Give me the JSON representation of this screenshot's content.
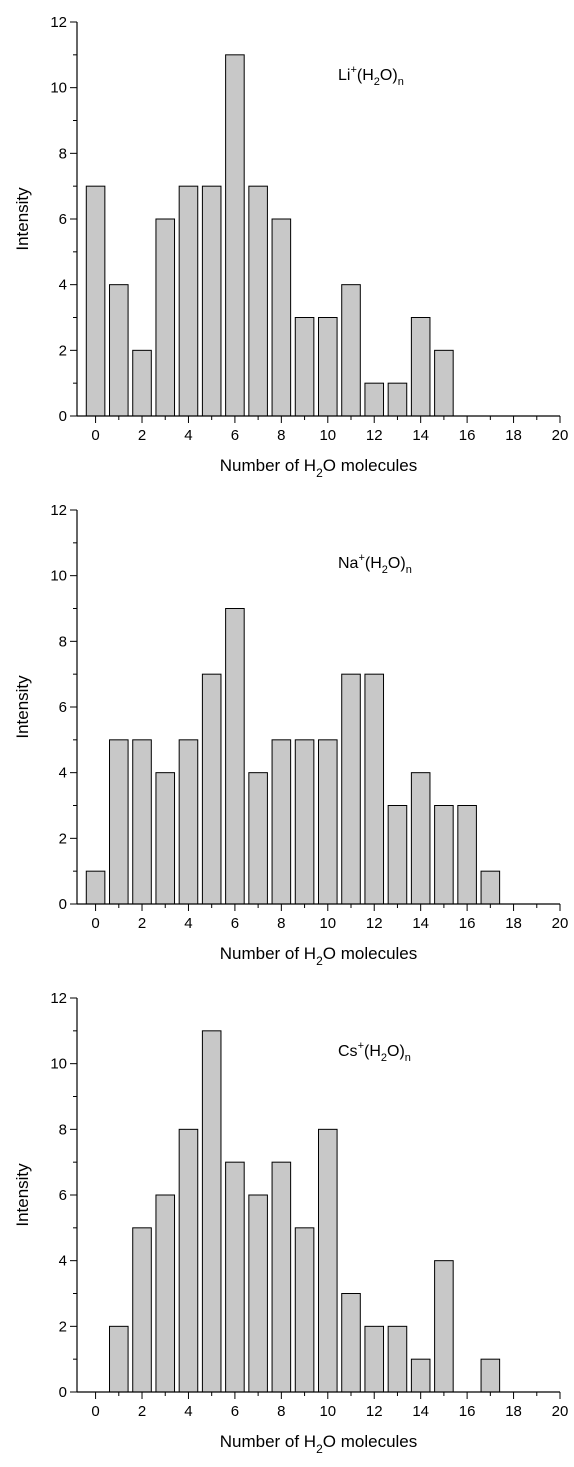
{
  "chart_data": [
    {
      "type": "bar",
      "annotation": {
        "base": "Li",
        "sup": "+",
        "open": "(H",
        "sub": "2",
        "close": "O)",
        "sub2": "n"
      },
      "xlabel": {
        "pre": "Number of H",
        "sub": "2",
        "post": "O molecules"
      },
      "ylabel": "Intensity",
      "xlim": [
        -0.8,
        20
      ],
      "ylim": [
        0,
        12
      ],
      "x_ticks": [
        "0",
        "2",
        "4",
        "6",
        "8",
        "10",
        "12",
        "14",
        "16",
        "18",
        "20"
      ],
      "y_ticks": [
        "0",
        "2",
        "4",
        "6",
        "8",
        "10",
        "12"
      ],
      "x": [
        0,
        1,
        2,
        3,
        4,
        5,
        6,
        7,
        8,
        9,
        10,
        11,
        12,
        13,
        14,
        15
      ],
      "values": [
        7,
        4,
        2,
        6,
        7,
        7,
        11,
        7,
        6,
        3,
        3,
        4,
        1,
        1,
        3,
        2
      ]
    },
    {
      "type": "bar",
      "annotation": {
        "base": "Na",
        "sup": "+",
        "open": "(H",
        "sub": "2",
        "close": "O)",
        "sub2": "n"
      },
      "xlabel": {
        "pre": "Number of H",
        "sub": "2",
        "post": "O molecules"
      },
      "ylabel": "Intensity",
      "xlim": [
        -0.8,
        20
      ],
      "ylim": [
        0,
        12
      ],
      "x_ticks": [
        "0",
        "2",
        "4",
        "6",
        "8",
        "10",
        "12",
        "14",
        "16",
        "18",
        "20"
      ],
      "y_ticks": [
        "0",
        "2",
        "4",
        "6",
        "8",
        "10",
        "12"
      ],
      "x": [
        0,
        1,
        2,
        3,
        4,
        5,
        6,
        7,
        8,
        9,
        10,
        11,
        12,
        13,
        14,
        15,
        16,
        17
      ],
      "values": [
        1,
        5,
        5,
        4,
        5,
        7,
        9,
        4,
        5,
        5,
        5,
        7,
        7,
        3,
        4,
        3,
        3,
        1
      ]
    },
    {
      "type": "bar",
      "annotation": {
        "base": "Cs",
        "sup": "+",
        "open": "(H",
        "sub": "2",
        "close": "O)",
        "sub2": "n"
      },
      "xlabel": {
        "pre": "Number of H",
        "sub": "2",
        "post": "O molecules"
      },
      "ylabel": "Intensity",
      "xlim": [
        -0.8,
        20
      ],
      "ylim": [
        0,
        12
      ],
      "x_ticks": [
        "0",
        "2",
        "4",
        "6",
        "8",
        "10",
        "12",
        "14",
        "16",
        "18",
        "20"
      ],
      "y_ticks": [
        "0",
        "2",
        "4",
        "6",
        "8",
        "10",
        "12"
      ],
      "x": [
        1,
        2,
        3,
        4,
        5,
        6,
        7,
        8,
        9,
        10,
        11,
        12,
        13,
        14,
        15,
        17
      ],
      "values": [
        2,
        5,
        6,
        8,
        11,
        7,
        6,
        7,
        5,
        8,
        3,
        2,
        2,
        1,
        4,
        1
      ]
    }
  ],
  "colors": {
    "bar_fill": "#c8c8c8",
    "axis": "#000000"
  }
}
